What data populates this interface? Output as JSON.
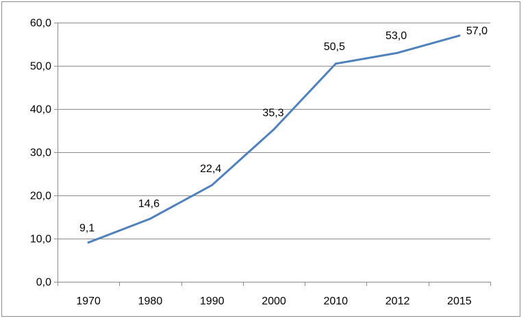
{
  "chart_data": {
    "type": "line",
    "categories": [
      "1970",
      "1980",
      "1990",
      "2000",
      "2010",
      "2012",
      "2015"
    ],
    "series": [
      {
        "values": [
          9.1,
          14.6,
          22.4,
          35.3,
          50.5,
          53.0,
          57.0
        ]
      }
    ],
    "data_labels": [
      "9,1",
      "14,6",
      "22,4",
      "35,3",
      "50,5",
      "53,0",
      "57,0"
    ],
    "y_tick_labels": [
      "0,0",
      "10,0",
      "20,0",
      "30,0",
      "40,0",
      "50,0",
      "60,0"
    ],
    "y_ticks": [
      0,
      10,
      20,
      30,
      40,
      50,
      60
    ],
    "ylim": [
      0,
      60
    ],
    "title": "",
    "xlabel": "",
    "ylabel": "",
    "grid": true,
    "legend": "none",
    "colors": {
      "line": "#4f81bd",
      "grid": "#8c8c8c",
      "axis": "#8c8c8c"
    }
  }
}
